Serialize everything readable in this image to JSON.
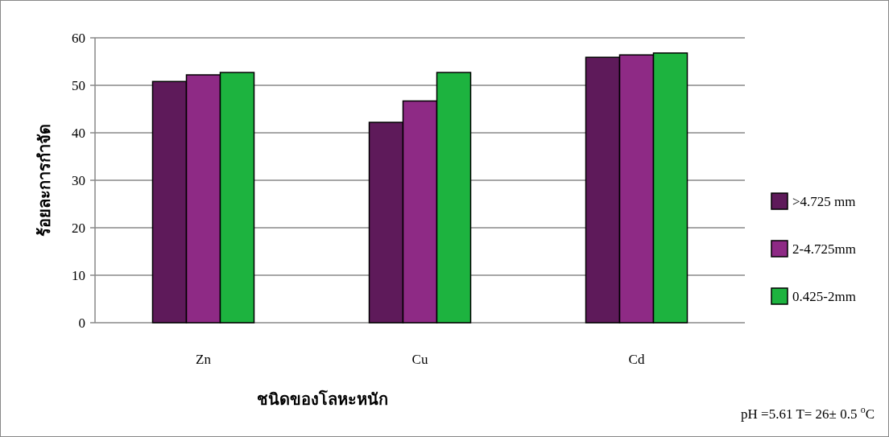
{
  "chart_data": {
    "type": "bar",
    "xlabel": "ชนิดของโลหะหนัก",
    "ylabel": "ร้อยละการกำจัด",
    "categories": [
      "Zn",
      "Cu",
      "Cd"
    ],
    "series": [
      {
        "name": ">4.725 mm",
        "color": "#5e1a5a",
        "values": [
          50.8,
          42.2,
          55.9
        ]
      },
      {
        "name": " 2-4.725mm",
        "color": "#8e2a85",
        "values": [
          52.2,
          46.7,
          56.4
        ]
      },
      {
        "name": "0.425-2mm",
        "color": "#1db33f",
        "values": [
          52.7,
          52.7,
          56.8
        ]
      }
    ],
    "ylim": [
      0,
      60
    ],
    "yticks": [
      0,
      10,
      20,
      30,
      40,
      50,
      60
    ],
    "grid": "y",
    "legend": "right",
    "annotations": [
      "pH =5.61 T= 26± 0.5 $^{o}$C"
    ]
  }
}
